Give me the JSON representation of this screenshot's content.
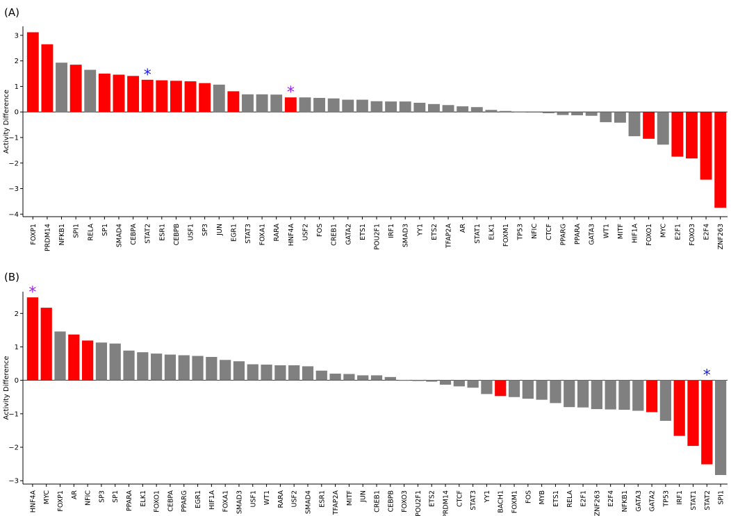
{
  "colors": {
    "highlight": "#ff0000",
    "default": "#808080",
    "star_blue": "#1f1fe0",
    "star_purple": "#a020f0"
  },
  "chart_data": [
    {
      "type": "bar",
      "panel_label": "(A)",
      "ylabel": "Activity Difference",
      "ylim": [
        -4.1,
        3.35
      ],
      "yticks": [
        -4,
        -3,
        -2,
        -1,
        0,
        1,
        2,
        3
      ],
      "categories": [
        "FOXP1",
        "PRDM14",
        "NFKB1",
        "SPI1",
        "RELA",
        "SP1",
        "SMAD4",
        "CEBPA",
        "STAT2",
        "ESR1",
        "CEBPB",
        "USF1",
        "SP3",
        "JUN",
        "EGR1",
        "STAT3",
        "FOXA1",
        "RARA",
        "HNF4A",
        "USF2",
        "FOS",
        "CREB1",
        "GATA2",
        "ETS1",
        "POU2F1",
        "IRF1",
        "SMAD3",
        "YY1",
        "ETS2",
        "TFAP2A",
        "AR",
        "STAT1",
        "ELK1",
        "FOXM1",
        "TP53",
        "NFIC",
        "CTCF",
        "PPARG",
        "PPARA",
        "GATA3",
        "WT1",
        "MITF",
        "HIF1A",
        "FOXO1",
        "MYC",
        "E2F1",
        "FOXO3",
        "E2F4",
        "ZNF263"
      ],
      "values": [
        3.12,
        2.65,
        1.93,
        1.85,
        1.65,
        1.5,
        1.46,
        1.41,
        1.26,
        1.24,
        1.22,
        1.2,
        1.13,
        1.07,
        0.81,
        0.69,
        0.69,
        0.68,
        0.57,
        0.57,
        0.55,
        0.53,
        0.48,
        0.48,
        0.42,
        0.41,
        0.41,
        0.36,
        0.31,
        0.27,
        0.22,
        0.19,
        0.08,
        0.04,
        0.02,
        -0.02,
        -0.05,
        -0.12,
        -0.13,
        -0.15,
        -0.4,
        -0.42,
        -0.95,
        -1.05,
        -1.28,
        -1.75,
        -1.82,
        -2.65,
        -3.75
      ],
      "highlighted": [
        "FOXP1",
        "PRDM14",
        "SPI1",
        "SP1",
        "SMAD4",
        "CEBPA",
        "STAT2",
        "ESR1",
        "CEBPB",
        "USF1",
        "SP3",
        "EGR1",
        "HNF4A",
        "FOXO1",
        "E2F1",
        "FOXO3",
        "E2F4",
        "ZNF263"
      ],
      "annotations": [
        {
          "category": "STAT2",
          "text": "*",
          "color": "blue"
        },
        {
          "category": "HNF4A",
          "text": "*",
          "color": "purple"
        }
      ]
    },
    {
      "type": "bar",
      "panel_label": "(B)",
      "ylabel": "Activity Difference",
      "ylim": [
        -3.1,
        2.65
      ],
      "yticks": [
        -3,
        -2,
        -1,
        0,
        1,
        2
      ],
      "categories": [
        "HNF4A",
        "MYC",
        "FOXP1",
        "AR",
        "NFIC",
        "SP3",
        "SP1",
        "PPARA",
        "ELK1",
        "FOXO1",
        "CEBPA",
        "PPARG",
        "EGR1",
        "HIF1A",
        "FOXA1",
        "SMAD3",
        "USF1",
        "WT1",
        "RARA",
        "USF2",
        "SMAD4",
        "ESR1",
        "TFAP2A",
        "MITF",
        "JUN",
        "CREB1",
        "CEBPB",
        "FOXO3",
        "POU2F1",
        "ETS2",
        "PRDM14",
        "CTCF",
        "STAT3",
        "YY1",
        "BACH1",
        "FOXM1",
        "FOS",
        "MYB",
        "ETS1",
        "RELA",
        "E2F1",
        "ZNF263",
        "E2F4",
        "NFKB1",
        "GATA3",
        "GATA2",
        "TP53",
        "IRF1",
        "STAT1",
        "STAT2",
        "SPI1"
      ],
      "values": [
        2.48,
        2.17,
        1.46,
        1.37,
        1.19,
        1.13,
        1.1,
        0.89,
        0.84,
        0.8,
        0.77,
        0.75,
        0.73,
        0.7,
        0.61,
        0.57,
        0.48,
        0.47,
        0.45,
        0.45,
        0.42,
        0.29,
        0.2,
        0.19,
        0.15,
        0.15,
        0.1,
        0.0,
        -0.02,
        -0.04,
        -0.13,
        -0.18,
        -0.22,
        -0.41,
        -0.47,
        -0.5,
        -0.55,
        -0.58,
        -0.68,
        -0.8,
        -0.81,
        -0.86,
        -0.87,
        -0.88,
        -0.91,
        -0.95,
        -1.21,
        -1.66,
        -1.96,
        -2.51,
        -2.83
      ],
      "highlighted": [
        "HNF4A",
        "MYC",
        "AR",
        "NFIC",
        "BACH1",
        "GATA2",
        "IRF1",
        "STAT1",
        "STAT2"
      ],
      "annotations": [
        {
          "category": "HNF4A",
          "text": "*",
          "color": "purple"
        },
        {
          "category": "STAT2",
          "text": "*",
          "color": "blue"
        }
      ]
    }
  ]
}
